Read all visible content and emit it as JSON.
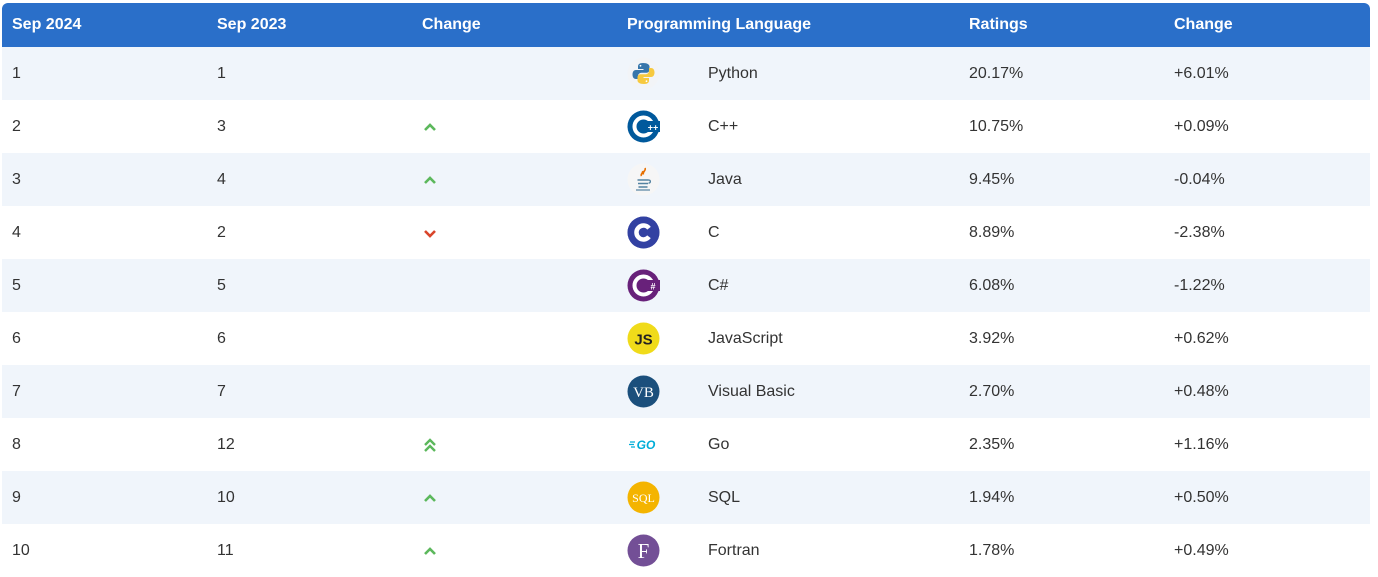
{
  "header": {
    "col_sep2024": "Sep 2024",
    "col_sep2023": "Sep 2023",
    "col_change": "Change",
    "col_language": "Programming Language",
    "col_ratings": "Ratings",
    "col_rating_change": "Change"
  },
  "colors": {
    "header_bg": "#2a6fc9",
    "up_arrow": "#5cb85c",
    "down_arrow": "#d9452b"
  },
  "rows": [
    {
      "rank_2024": "1",
      "rank_2023": "1",
      "trend": "none",
      "icon": "python-icon",
      "language": "Python",
      "rating": "20.17%",
      "rating_change": "+6.01%"
    },
    {
      "rank_2024": "2",
      "rank_2023": "3",
      "trend": "up",
      "icon": "cpp-icon",
      "language": "C++",
      "rating": "10.75%",
      "rating_change": "+0.09%"
    },
    {
      "rank_2024": "3",
      "rank_2023": "4",
      "trend": "up",
      "icon": "java-icon",
      "language": "Java",
      "rating": "9.45%",
      "rating_change": "-0.04%"
    },
    {
      "rank_2024": "4",
      "rank_2023": "2",
      "trend": "down",
      "icon": "c-icon",
      "language": "C",
      "rating": "8.89%",
      "rating_change": "-2.38%"
    },
    {
      "rank_2024": "5",
      "rank_2023": "5",
      "trend": "none",
      "icon": "csharp-icon",
      "language": "C#",
      "rating": "6.08%",
      "rating_change": "-1.22%"
    },
    {
      "rank_2024": "6",
      "rank_2023": "6",
      "trend": "none",
      "icon": "javascript-icon",
      "language": "JavaScript",
      "rating": "3.92%",
      "rating_change": "+0.62%"
    },
    {
      "rank_2024": "7",
      "rank_2023": "7",
      "trend": "none",
      "icon": "visual-basic-icon",
      "language": "Visual Basic",
      "rating": "2.70%",
      "rating_change": "+0.48%"
    },
    {
      "rank_2024": "8",
      "rank_2023": "12",
      "trend": "double-up",
      "icon": "go-icon",
      "language": "Go",
      "rating": "2.35%",
      "rating_change": "+1.16%"
    },
    {
      "rank_2024": "9",
      "rank_2023": "10",
      "trend": "up",
      "icon": "sql-icon",
      "language": "SQL",
      "rating": "1.94%",
      "rating_change": "+0.50%"
    },
    {
      "rank_2024": "10",
      "rank_2023": "11",
      "trend": "up",
      "icon": "fortran-icon",
      "language": "Fortran",
      "rating": "1.78%",
      "rating_change": "+0.49%"
    }
  ]
}
